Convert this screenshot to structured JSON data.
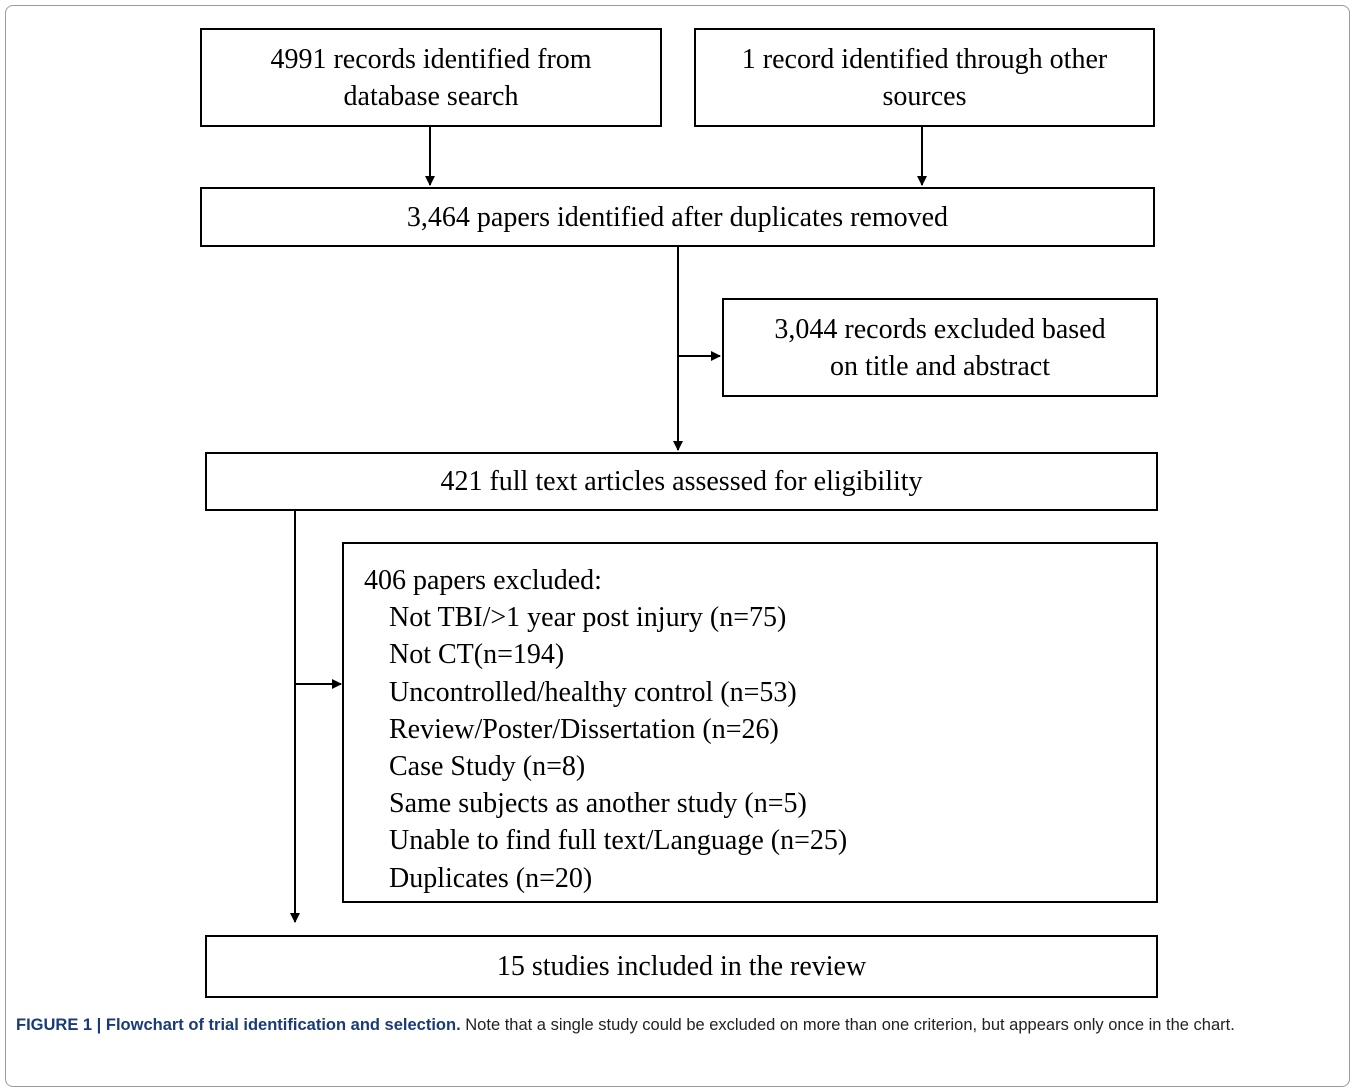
{
  "nodes": [
    {
      "lines": [
        "4991 records identified from",
        "database search"
      ]
    },
    {
      "lines": [
        "1 record identified through other",
        "sources"
      ]
    },
    {
      "lines": [
        "3,464 papers identified after duplicates removed"
      ]
    },
    {
      "lines": [
        "3,044 records excluded based",
        "on title and abstract"
      ]
    },
    {
      "lines": [
        "421 full text articles assessed for eligibility"
      ]
    },
    {
      "title": "406 papers excluded:",
      "items": [
        "Not TBI/>1 year post injury (n=75)",
        "Not CT(n=194)",
        "Uncontrolled/healthy control (n=53)",
        "Review/Poster/Dissertation (n=26)",
        "Case Study (n=8)",
        "Same subjects as another study (n=5)",
        "Unable to find full text/Language (n=25)",
        "Duplicates (n=20)"
      ]
    },
    {
      "lines": [
        "15 studies included in the review"
      ]
    }
  ],
  "caption": {
    "label": "FIGURE 1 | Flowchart of trial identification and selection.",
    "text": "Note that a single study could be excluded on more than one criterion, but appears only once in the chart."
  }
}
